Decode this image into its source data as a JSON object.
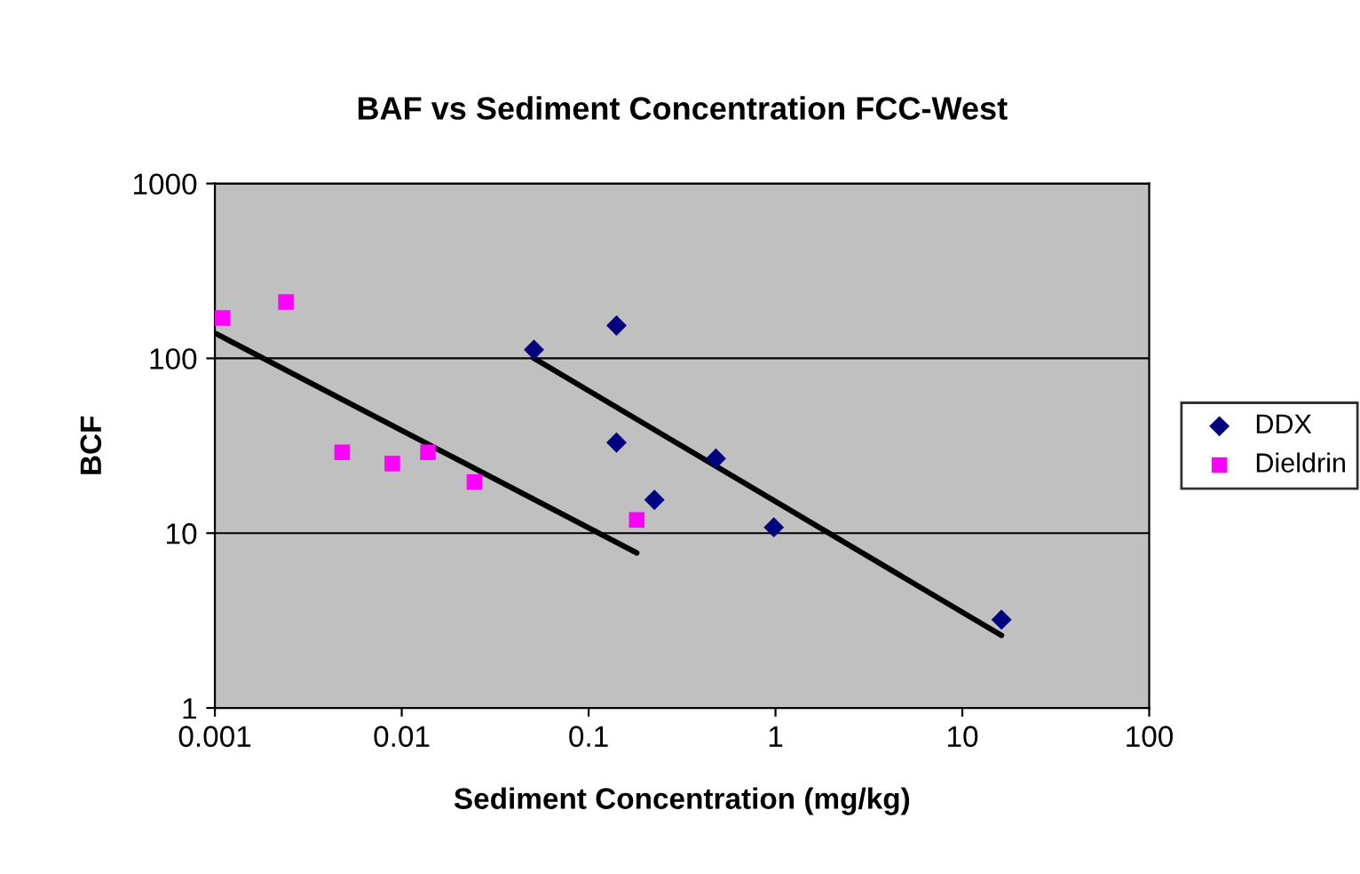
{
  "chart_data": {
    "type": "scatter",
    "title": "BAF vs Sediment Concentration FCC-West",
    "xlabel": "Sediment Concentration (mg/kg)",
    "ylabel": "BCF",
    "log": "xy",
    "xlim": [
      0.001,
      100
    ],
    "ylim": [
      1,
      1000
    ],
    "xticks": [
      0.001,
      0.01,
      0.1,
      1,
      10,
      100
    ],
    "yticks": [
      1,
      10,
      100,
      1000
    ],
    "grid": "y",
    "legend": "right",
    "series": [
      {
        "name": "DDX",
        "color": "#000080",
        "marker": "diamond",
        "x": [
          0.051,
          0.141,
          0.141,
          0.225,
          0.48,
          0.98,
          16.2
        ],
        "values": [
          112,
          154,
          33,
          15.5,
          26.7,
          10.8,
          3.2
        ]
      },
      {
        "name": "Dieldrin",
        "color": "#ff00ff",
        "marker": "square",
        "x": [
          0.0011,
          0.0024,
          0.0048,
          0.0089,
          0.0138,
          0.0245,
          0.181
        ],
        "values": [
          170,
          210,
          29,
          25,
          29,
          19.6,
          11.9
        ]
      },
      {
        "type": "line",
        "color": "#000000",
        "marker": "none",
        "x": [
          0.00102,
          0.181
        ],
        "values": [
          138,
          7.7
        ]
      },
      {
        "type": "line",
        "color": "#000000",
        "marker": "none",
        "x": [
          0.051,
          16.2
        ],
        "values": [
          100,
          2.6
        ]
      }
    ]
  }
}
